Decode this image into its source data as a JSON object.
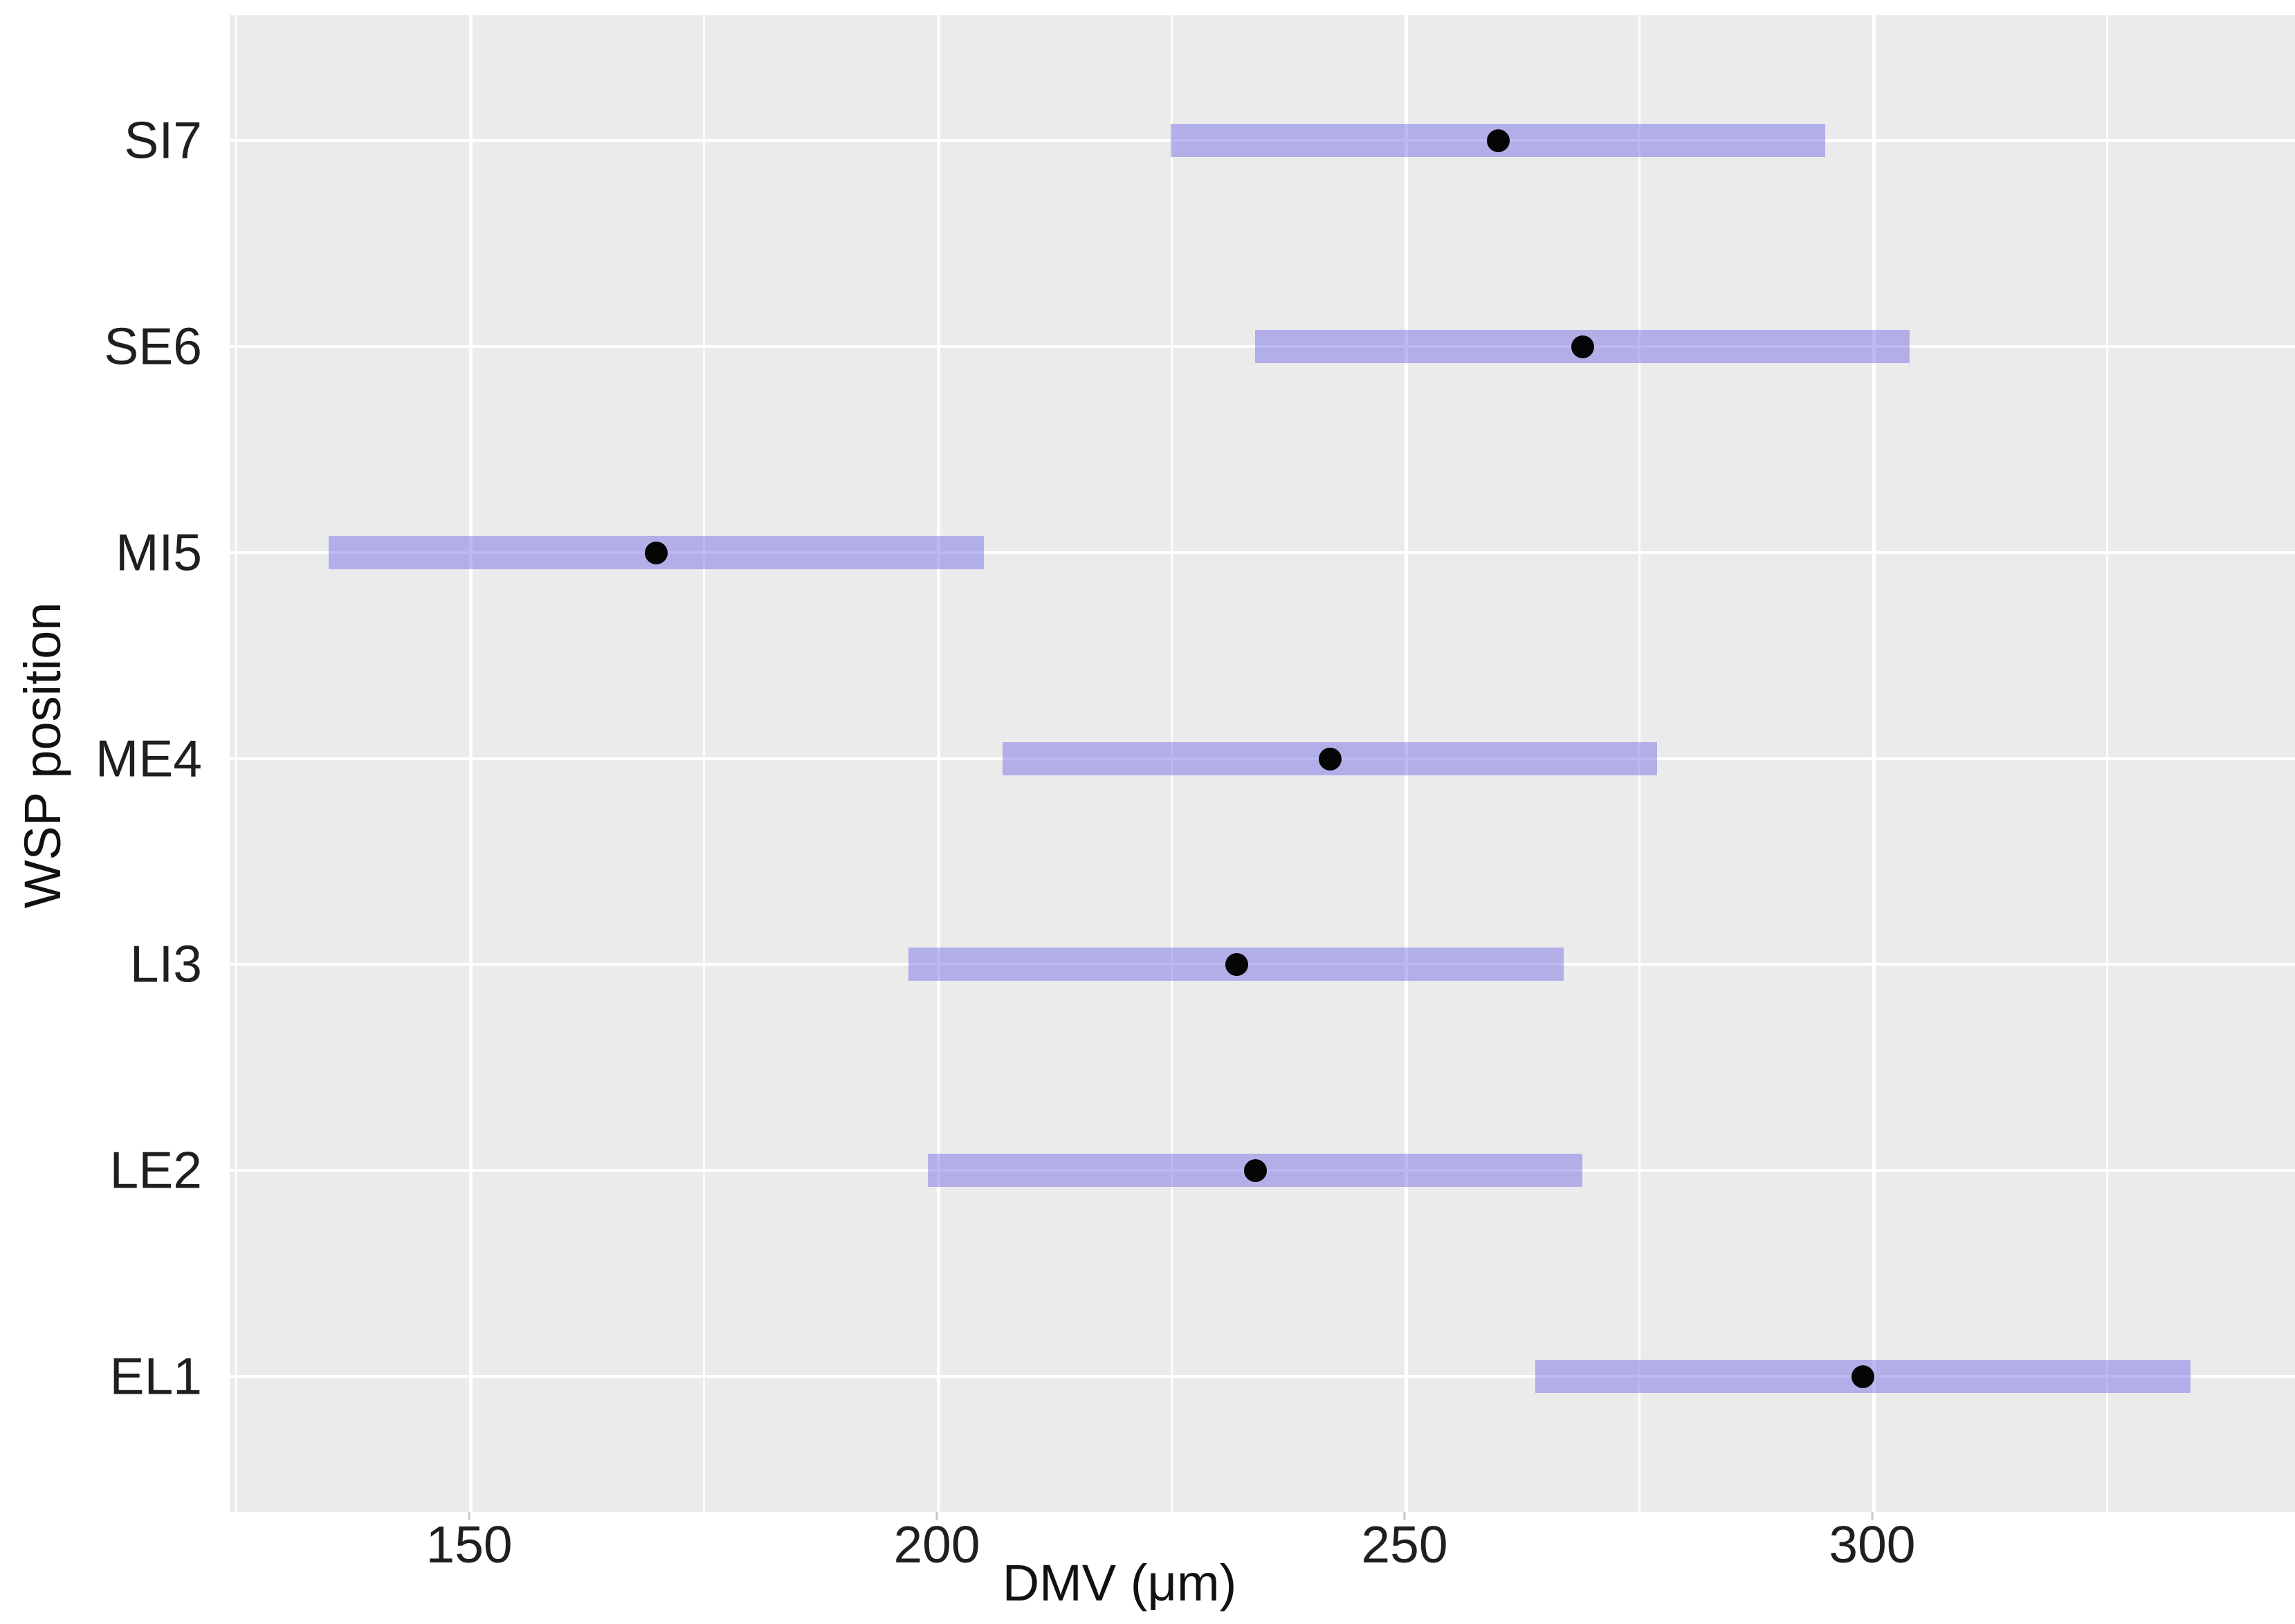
{
  "figure": {
    "background": "#FFFFFF",
    "panel_background": "#EBEBEB",
    "gridline_color": "#FFFFFF",
    "text_color": "#1F1F1F"
  },
  "chart_data": {
    "type": "bar",
    "subtype": "horizontal-interval-range-plot",
    "orientation": "horizontal",
    "title": "",
    "xlabel": "DMV (μm)",
    "ylabel": "WSP position",
    "categories_top_to_bottom": [
      "SI7",
      "SE6",
      "MI5",
      "ME4",
      "LI3",
      "LE2",
      "EL1"
    ],
    "points": [
      {
        "label": "SI7",
        "mean": 260,
        "low": 225,
        "high": 295
      },
      {
        "label": "SE6",
        "mean": 269,
        "low": 234,
        "high": 304
      },
      {
        "label": "MI5",
        "mean": 170,
        "low": 135,
        "high": 205
      },
      {
        "label": "ME4",
        "mean": 242,
        "low": 207,
        "high": 277
      },
      {
        "label": "LI3",
        "mean": 232,
        "low": 197,
        "high": 267
      },
      {
        "label": "LE2",
        "mean": 234,
        "low": 199,
        "high": 269
      },
      {
        "label": "EL1",
        "mean": 299,
        "low": 264,
        "high": 334
      }
    ],
    "x_ticks": [
      150,
      200,
      250,
      300
    ],
    "x_minor_gridlines": [
      125,
      175,
      225,
      275,
      325
    ],
    "xlim": [
      124.4,
      345.2
    ],
    "grid": "vertical major+minor white lines on gray panel; horizontal white line at each category",
    "legend_position": "none",
    "colors": {
      "bar_fill_rgba": "rgba(121,113,229,0.5)",
      "bar_fill_effective": "#B2AEE8",
      "dot": "#050505"
    }
  }
}
